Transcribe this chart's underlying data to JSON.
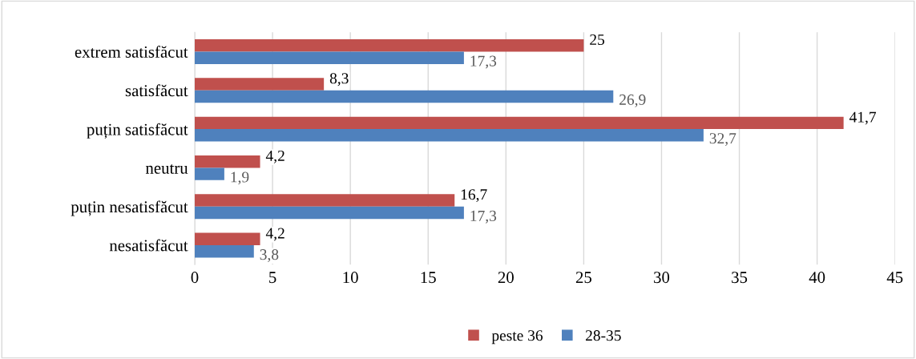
{
  "chart_data": {
    "type": "bar",
    "orientation": "horizontal",
    "categories": [
      "extrem satisfăcut",
      "satisfăcut",
      "puțin satisfăcut",
      "neutru",
      "puțin nesatisfăcut",
      "nesatisfăcut"
    ],
    "series": [
      {
        "name": "peste 36",
        "color": "#c0504d",
        "values": [
          25,
          8.3,
          41.7,
          4.2,
          16.7,
          4.2
        ],
        "value_labels": [
          "25",
          "8,3",
          "41,7",
          "4,2",
          "16,7",
          "4,2"
        ]
      },
      {
        "name": "28-35",
        "color": "#4f81bd",
        "values": [
          17.3,
          26.9,
          32.7,
          1.9,
          17.3,
          3.8
        ],
        "value_labels": [
          "17,3",
          "26,9",
          "32,7",
          "1,9",
          "17,3",
          "3,8"
        ]
      }
    ],
    "xlim": [
      0,
      45
    ],
    "xticks": [
      0,
      5,
      10,
      15,
      20,
      25,
      30,
      35,
      40,
      45
    ],
    "grid": "x",
    "legend": "bottom"
  }
}
